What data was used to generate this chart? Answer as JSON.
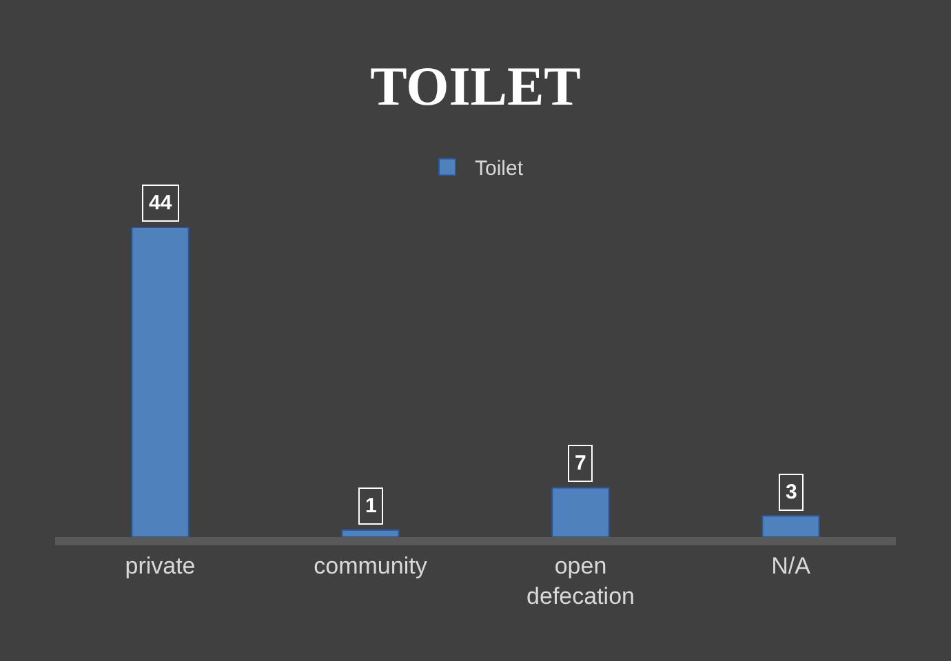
{
  "chart_data": {
    "type": "bar",
    "title": "TOILET",
    "categories": [
      "private",
      "community",
      "open defecation",
      "N/A"
    ],
    "series": [
      {
        "name": "Toilet",
        "color": "#4f81bd",
        "values": [
          44,
          1,
          7,
          3
        ]
      }
    ],
    "data_labels": true,
    "legend": "top",
    "grid": false,
    "tick_labels": "x"
  }
}
